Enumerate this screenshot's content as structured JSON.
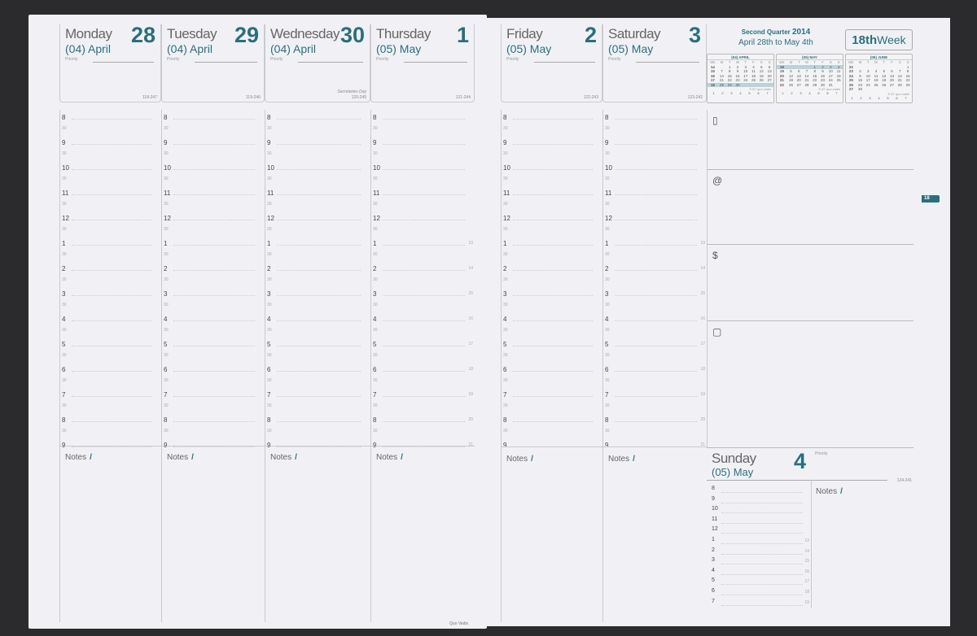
{
  "days": [
    {
      "name": "Monday",
      "num": "28",
      "month": "(04) April",
      "priority": "Priority",
      "code": "118-247",
      "notes": "Notes"
    },
    {
      "name": "Tuesday",
      "num": "29",
      "month": "(04) April",
      "priority": "Priority",
      "code": "119-246",
      "notes": "Notes"
    },
    {
      "name": "Wednesday",
      "num": "30",
      "month": "(04) April",
      "priority": "Priority",
      "code": "120-245",
      "event": "Secretaries Day",
      "notes": "Notes"
    },
    {
      "name": "Thursday",
      "num": "1",
      "month": "(05) May",
      "priority": "Priority",
      "code": "121-244",
      "notes": "Notes"
    },
    {
      "name": "Friday",
      "num": "2",
      "month": "(05) May",
      "priority": "Priority",
      "code": "122-243",
      "notes": "Notes"
    },
    {
      "name": "Saturday",
      "num": "3",
      "month": "(05) May",
      "priority": "Priority",
      "code": "123-242",
      "notes": "Notes"
    },
    {
      "name": "Sunday",
      "num": "4",
      "month": "(05) May",
      "priority": "Priority",
      "code": "124-241",
      "notes": "Notes"
    }
  ],
  "hours": [
    "8",
    "9",
    "10",
    "11",
    "12",
    "1",
    "2",
    "3",
    "4",
    "5",
    "6",
    "7",
    "8",
    "9"
  ],
  "hours24": [
    "",
    "",
    "",
    "",
    "",
    "13",
    "14",
    "15",
    "16",
    "17",
    "18",
    "19",
    "20",
    "21"
  ],
  "half": "30",
  "quarter": {
    "label": "Second Quarter",
    "year": "2014",
    "range": "April 28th to May 4th"
  },
  "week": {
    "num": "18th",
    "label": "Week"
  },
  "tab": "18",
  "section_icons": [
    "phone-icon",
    "at-icon",
    "dollar-icon",
    "notepad-icon"
  ],
  "section_glyphs": [
    "▯",
    "@",
    "$",
    "▢"
  ],
  "brand": "Quo Vadis",
  "calendars": [
    {
      "title": "(04) APRIL",
      "head": [
        "Wk",
        "M",
        "T",
        "W",
        "T",
        "F",
        "S",
        "S"
      ],
      "highlight": 5,
      "rows": [
        [
          "14",
          "",
          "1",
          "2",
          "3",
          "4",
          "5",
          "6"
        ],
        [
          "15",
          "7",
          "8",
          "9",
          "10",
          "11",
          "12",
          "13"
        ],
        [
          "16",
          "14",
          "15",
          "16",
          "17",
          "18",
          "19",
          "20"
        ],
        [
          "17",
          "21",
          "22",
          "23",
          "24",
          "25",
          "26",
          "27"
        ],
        [
          "18",
          "28",
          "29",
          "30",
          "",
          "",
          "",
          ""
        ]
      ]
    },
    {
      "title": "(05) MAY",
      "head": [
        "Wk",
        "M",
        "T",
        "W",
        "T",
        "F",
        "S",
        "S"
      ],
      "highlight": 1,
      "rows": [
        [
          "18",
          "",
          "",
          "",
          "1",
          "2",
          "3",
          "4"
        ],
        [
          "19",
          "5",
          "6",
          "7",
          "8",
          "9",
          "10",
          "11"
        ],
        [
          "20",
          "12",
          "13",
          "14",
          "15",
          "16",
          "17",
          "18"
        ],
        [
          "21",
          "19",
          "20",
          "21",
          "22",
          "23",
          "24",
          "25"
        ],
        [
          "22",
          "26",
          "27",
          "28",
          "29",
          "30",
          "31",
          ""
        ]
      ]
    },
    {
      "title": "(06) JUNE",
      "head": [
        "Wk",
        "M",
        "T",
        "W",
        "T",
        "F",
        "S",
        "S"
      ],
      "highlight": 0,
      "rows": [
        [
          "22",
          "",
          "",
          "",
          "",
          "",
          "",
          "1"
        ],
        [
          "23",
          "2",
          "3",
          "4",
          "5",
          "6",
          "7",
          "8"
        ],
        [
          "24",
          "9",
          "10",
          "11",
          "12",
          "13",
          "14",
          "15"
        ],
        [
          "25",
          "16",
          "17",
          "18",
          "19",
          "20",
          "21",
          "22"
        ],
        [
          "26",
          "23",
          "24",
          "25",
          "26",
          "27",
          "28",
          "29"
        ],
        [
          "27",
          "30",
          "",
          "",
          "",
          "",
          "",
          ""
        ]
      ]
    }
  ],
  "cal_footer": "© 87 quo vadis",
  "cal_circles": [
    "1",
    "2",
    "3",
    "4",
    "5",
    "6",
    "7"
  ]
}
